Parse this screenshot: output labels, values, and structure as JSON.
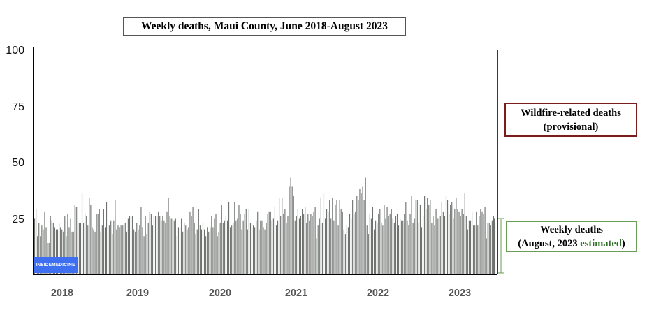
{
  "chart_data": {
    "type": "bar",
    "title": "Weekly deaths, Maui County, June 2018-August 2023",
    "xlabel": "",
    "ylabel": "",
    "ylim": [
      0,
      100
    ],
    "yticks": [
      "25",
      "50",
      "75",
      "100"
    ],
    "xticks": [
      "2018",
      "2019",
      "2020",
      "2021",
      "2022",
      "2023"
    ],
    "grid": false,
    "series": [
      {
        "values": [
          25,
          29,
          17,
          23,
          17,
          22,
          20,
          28,
          21,
          14,
          14,
          26,
          24,
          23,
          21,
          20,
          20,
          23,
          21,
          20,
          19,
          26,
          17,
          27,
          21,
          25,
          19,
          19,
          31,
          30,
          30,
          23,
          23,
          36,
          23,
          27,
          26,
          22,
          34,
          31,
          21,
          20,
          19,
          27,
          27,
          29,
          19,
          22,
          29,
          21,
          32,
          22,
          22,
          24,
          18,
          24,
          33,
          20,
          22,
          21,
          22,
          22,
          22,
          23,
          19,
          25,
          26,
          26,
          26,
          20,
          19,
          23,
          20,
          22,
          30,
          21,
          17,
          26,
          18,
          23,
          28,
          27,
          22,
          26,
          26,
          26,
          28,
          26,
          24,
          26,
          24,
          23,
          28,
          34,
          26,
          25,
          25,
          24,
          25,
          17,
          21,
          21,
          25,
          19,
          23,
          22,
          20,
          21,
          28,
          26,
          30,
          23,
          18,
          20,
          29,
          22,
          20,
          23,
          20,
          17,
          21,
          19,
          21,
          26,
          21,
          25,
          27,
          17,
          19,
          23,
          31,
          23,
          24,
          26,
          24,
          32,
          21,
          22,
          23,
          32,
          24,
          25,
          31,
          27,
          20,
          24,
          27,
          29,
          20,
          29,
          23,
          23,
          22,
          21,
          24,
          28,
          20,
          24,
          24,
          21,
          20,
          23,
          27,
          28,
          28,
          24,
          25,
          30,
          22,
          24,
          34,
          26,
          34,
          27,
          29,
          23,
          26,
          39,
          43,
          39,
          35,
          24,
          26,
          29,
          25,
          26,
          29,
          27,
          30,
          23,
          27,
          24,
          27,
          26,
          28,
          30,
          16,
          22,
          25,
          34,
          23,
          36,
          25,
          29,
          28,
          33,
          25,
          34,
          24,
          31,
          33,
          22,
          33,
          29,
          28,
          20,
          18,
          22,
          21,
          27,
          25,
          33,
          27,
          28,
          35,
          33,
          38,
          36,
          39,
          33,
          43,
          22,
          18,
          27,
          25,
          30,
          20,
          24,
          23,
          27,
          29,
          23,
          22,
          31,
          25,
          30,
          26,
          27,
          29,
          25,
          23,
          26,
          27,
          22,
          25,
          24,
          24,
          27,
          32,
          24,
          22,
          27,
          35,
          23,
          25,
          33,
          33,
          23,
          31,
          21,
          26,
          35,
          29,
          34,
          31,
          33,
          23,
          26,
          22,
          29,
          25,
          25,
          26,
          32,
          28,
          26,
          35,
          33,
          27,
          31,
          32,
          25,
          29,
          34,
          29,
          28,
          26,
          29,
          27,
          36,
          26,
          20,
          24,
          24,
          28,
          22,
          22,
          28,
          22,
          26,
          29,
          28,
          27,
          30,
          16,
          23,
          23,
          22,
          24,
          26,
          23
        ]
      },
      {
        "values": [
          25
        ]
      }
    ],
    "annotations": [
      {
        "lines": [
          "Wildfire-related deaths",
          "(provisional)"
        ]
      },
      {
        "lines": [
          "Weekly deaths",
          "(August, 2023 ",
          "estimated",
          ")"
        ]
      }
    ],
    "colors": {
      "bars": "#6e726f",
      "wildfire": "#7a1d1d",
      "estimated": "#6a9e57",
      "logo": "#3f6ff1"
    }
  },
  "logo_text": "INSIDEMEDICINE"
}
